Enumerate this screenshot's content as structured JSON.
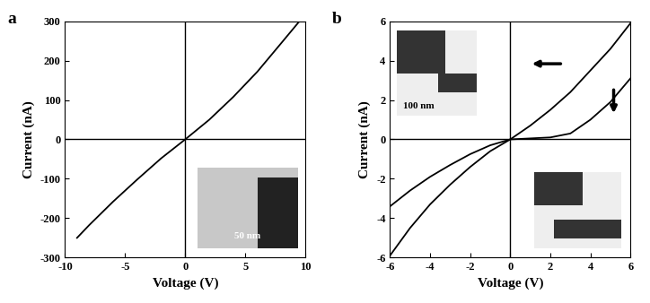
{
  "chart_data": [
    {
      "type": "line",
      "title": "a",
      "x_label": "Voltage (V)",
      "y_label": "Current (nA)",
      "x": [
        -9,
        -8,
        -6,
        -4,
        -2,
        0,
        2,
        4,
        6,
        8,
        9.5
      ],
      "series": [
        {
          "color": "#000000",
          "values": [
            -250,
            -218,
            -158,
            -102,
            -48,
            0,
            50,
            108,
            172,
            245,
            300
          ]
        }
      ],
      "xlim": [
        -10,
        10
      ],
      "xticks": [
        -10,
        -5,
        0,
        5,
        10
      ],
      "ylim": [
        -300,
        300
      ],
      "yticks": [
        -300,
        -200,
        -100,
        0,
        100,
        200,
        300
      ],
      "grid": false,
      "annotations": [
        "50 nm"
      ]
    },
    {
      "type": "line",
      "title": "b",
      "x_label": "Voltage (V)",
      "y_label": "Current (nA)",
      "x": [
        -6,
        -5,
        -4,
        -3,
        -2,
        -1,
        0,
        1,
        2,
        3,
        4,
        5,
        6
      ],
      "series": [
        {
          "color": "#000000",
          "values": [
            -5.9,
            -4.5,
            -3.3,
            -2.3,
            -1.4,
            -0.6,
            0,
            0.7,
            1.5,
            2.4,
            3.5,
            4.6,
            5.9
          ]
        },
        {
          "color": "#000000",
          "values": [
            -3.4,
            -2.6,
            -1.9,
            -1.3,
            -0.75,
            -0.3,
            0,
            0.05,
            0.1,
            0.3,
            1.0,
            1.9,
            3.1
          ]
        }
      ],
      "xlim": [
        -6,
        6
      ],
      "xticks": [
        -6,
        -4,
        -2,
        0,
        2,
        4,
        6
      ],
      "ylim": [
        -6,
        6
      ],
      "yticks": [
        -6,
        -4,
        -2,
        0,
        2,
        4,
        6
      ],
      "grid": false,
      "annotations": [
        "100 nm"
      ]
    }
  ]
}
